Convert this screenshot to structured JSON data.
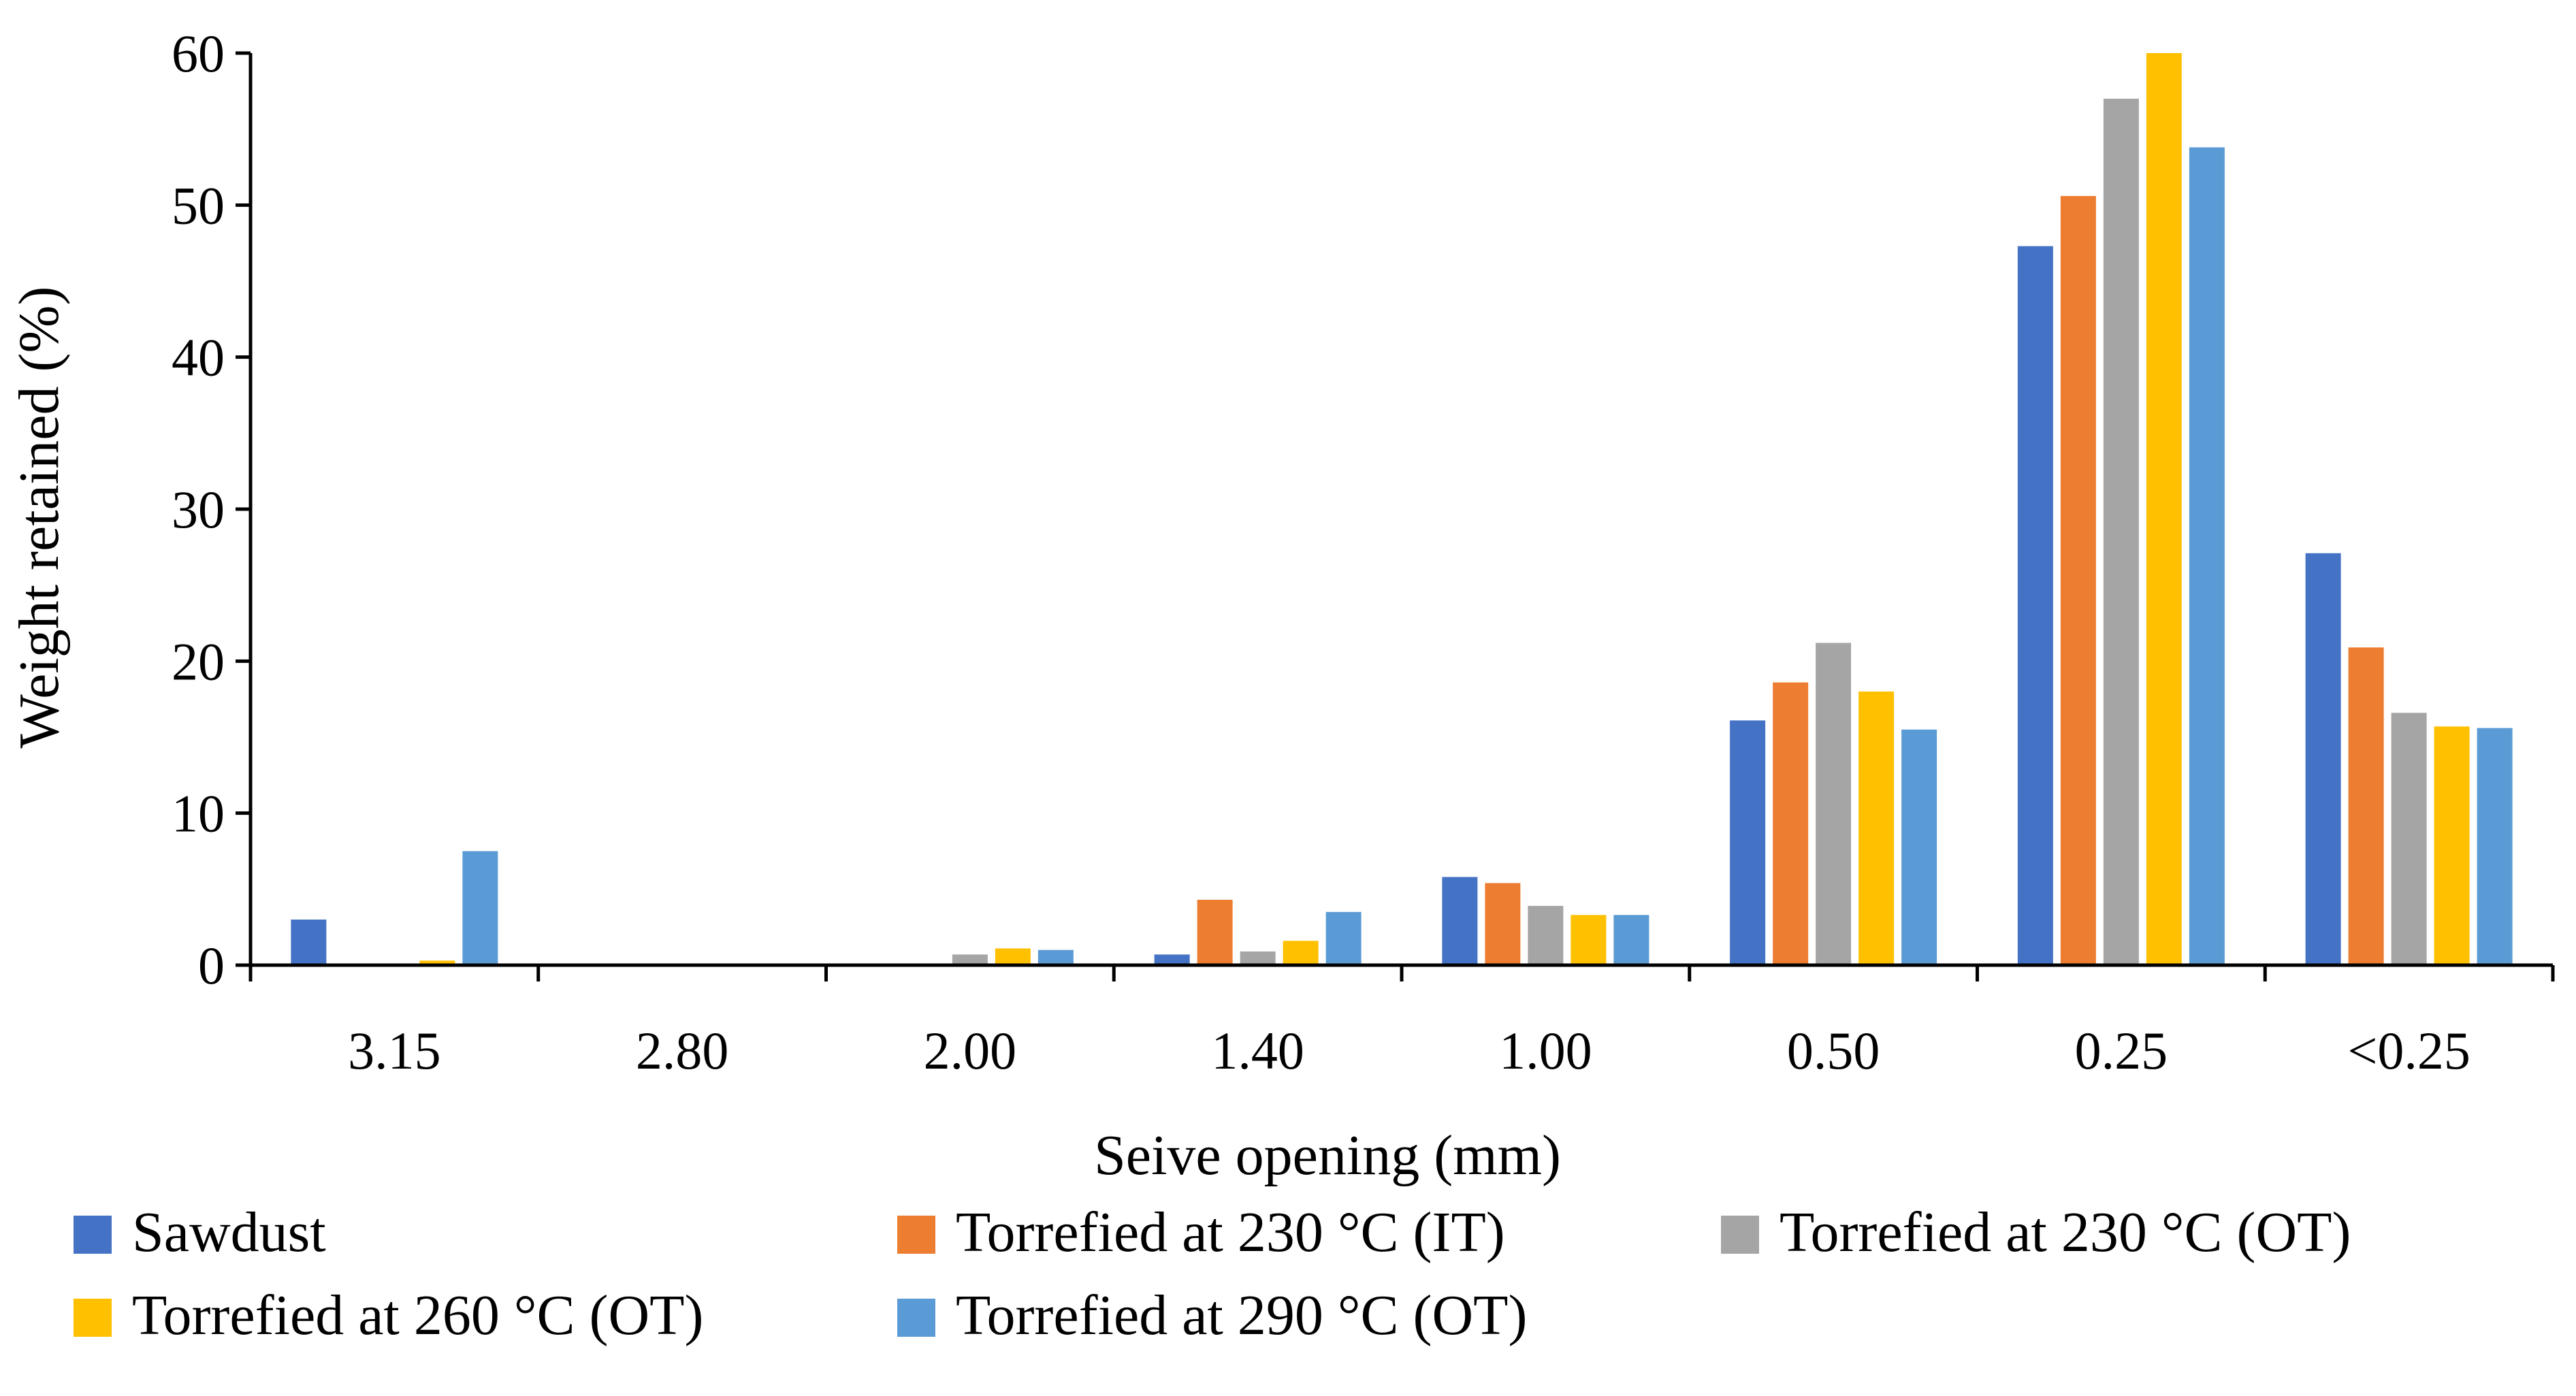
{
  "chart_data": {
    "type": "bar",
    "title": "",
    "xlabel": "Seive opening (mm)",
    "ylabel": "Weight retained (%)",
    "ylim": [
      0,
      60
    ],
    "yticks": [
      "0",
      "10",
      "20",
      "30",
      "40",
      "50",
      "60"
    ],
    "grid": false,
    "legend_position": "bottom",
    "categories": [
      "3.15",
      "2.80",
      "2.00",
      "1.40",
      "1.00",
      "0.50",
      "0.25",
      "<0.25"
    ],
    "series": [
      {
        "name": "Sawdust",
        "color": "#4472C4",
        "values": [
          3.0,
          0,
          0,
          0.7,
          5.8,
          16.1,
          47.3,
          27.1
        ]
      },
      {
        "name": "Torrefied at 230 °C (IT)",
        "color": "#ED7D31",
        "values": [
          0,
          0,
          0,
          4.3,
          5.4,
          18.6,
          50.6,
          20.9
        ]
      },
      {
        "name": "Torrefied at 230 °C (OT)",
        "color": "#A5A5A5",
        "values": [
          0,
          0,
          0.7,
          0.9,
          3.9,
          21.2,
          57.0,
          16.6
        ]
      },
      {
        "name": "Torrefied at 260 °C (OT)",
        "color": "#FFC000",
        "values": [
          0.3,
          0,
          1.1,
          1.6,
          3.3,
          18.0,
          60.0,
          15.7
        ]
      },
      {
        "name": "Torrefied at 290 °C (OT)",
        "color": "#5B9BD5",
        "values": [
          7.5,
          0,
          1.0,
          3.5,
          3.3,
          15.5,
          53.8,
          15.6
        ]
      }
    ]
  }
}
